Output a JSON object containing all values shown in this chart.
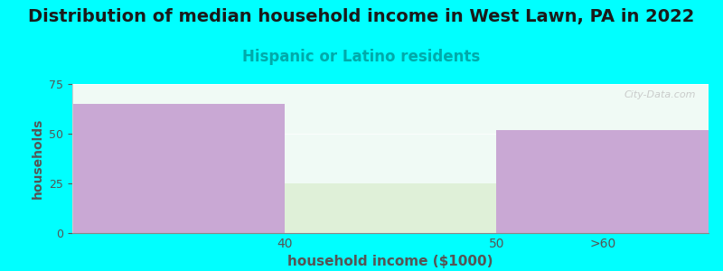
{
  "title": "Distribution of median household income in West Lawn, PA in 2022",
  "subtitle": "Hispanic or Latino residents",
  "xlabel": "household income ($1000)",
  "ylabel": "households",
  "bar_edges": [
    0,
    1,
    2,
    3
  ],
  "values": [
    65,
    25,
    52
  ],
  "bar_colors": [
    "#C9A8D4",
    "#DFF0D8",
    "#C9A8D4"
  ],
  "background_color": "#00FFFF",
  "plot_bg_color": "#F0FAF5",
  "ylim": [
    0,
    75
  ],
  "yticks": [
    0,
    25,
    50,
    75
  ],
  "xtick_positions": [
    1,
    2,
    2.5
  ],
  "xtick_labels": [
    "40",
    "50",
    ">60"
  ],
  "title_fontsize": 14,
  "subtitle_fontsize": 12,
  "subtitle_color": "#00AAAA",
  "axis_label_color": "#555555",
  "tick_label_color": "#555555",
  "watermark": "City-Data.com"
}
